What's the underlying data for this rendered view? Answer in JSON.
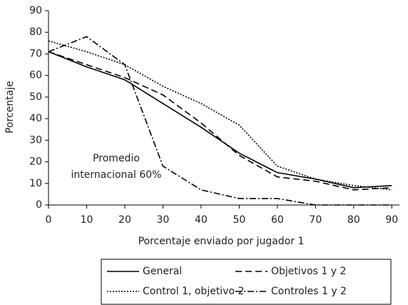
{
  "chart_data": {
    "type": "line",
    "x_label": "Porcentaje enviado por jugador 1",
    "y_label": "Porcentaje",
    "annotation": [
      "Promedio",
      "internacional 60%"
    ],
    "x": [
      0,
      10,
      20,
      30,
      40,
      50,
      60,
      70,
      80,
      90
    ],
    "series": [
      {
        "name": "General",
        "color": "#000000",
        "dash": "solid",
        "values": [
          71,
          64,
          58,
          47,
          36,
          24,
          15,
          12,
          8,
          9
        ]
      },
      {
        "name": "Objetivos 1 y 2",
        "color": "#000000",
        "dash": "dashed",
        "values": [
          71,
          65,
          59,
          51,
          38,
          23,
          13,
          11,
          7,
          8
        ]
      },
      {
        "name": "Control 1, objetivo 2",
        "color": "#000000",
        "dash": "dotted",
        "values": [
          76,
          71,
          65,
          55,
          47,
          37,
          18,
          12,
          9,
          7
        ]
      },
      {
        "name": "Controles 1 y 2",
        "color": "#000000",
        "dash": "dashdot",
        "values": [
          71,
          78,
          65,
          18,
          7,
          3,
          3,
          0,
          0,
          0
        ]
      }
    ],
    "xlim": [
      0,
      92
    ],
    "xticks": [
      0,
      10,
      20,
      30,
      40,
      50,
      60,
      70,
      80,
      90
    ],
    "ylim": [
      0,
      90
    ],
    "yticks": [
      0,
      10,
      20,
      30,
      40,
      50,
      60,
      70,
      80,
      90
    ],
    "grid": false
  }
}
